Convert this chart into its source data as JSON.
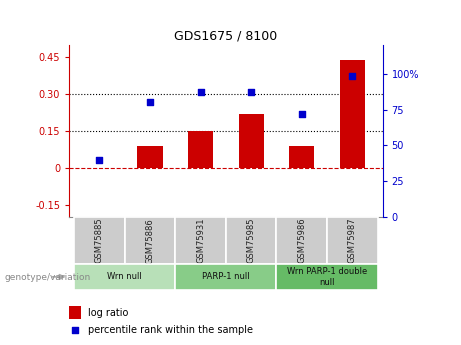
{
  "title": "GDS1675 / 8100",
  "samples": [
    "GSM75885",
    "GSM75886",
    "GSM75931",
    "GSM75985",
    "GSM75986",
    "GSM75987"
  ],
  "log_ratio": [
    0.0,
    0.09,
    0.15,
    0.22,
    0.09,
    0.44
  ],
  "percentile_rank": [
    40,
    80,
    87,
    87,
    72,
    98
  ],
  "bar_color": "#cc0000",
  "dot_color": "#0000cc",
  "groups": [
    {
      "label": "Wrn null",
      "start": 0,
      "end": 2,
      "color": "#b8e0b8"
    },
    {
      "label": "PARP-1 null",
      "start": 2,
      "end": 4,
      "color": "#88cc88"
    },
    {
      "label": "Wrn PARP-1 double\nnull",
      "start": 4,
      "end": 6,
      "color": "#66bb66"
    }
  ],
  "ylim_left": [
    -0.2,
    0.5
  ],
  "ylim_right": [
    0,
    120
  ],
  "yticks_left": [
    -0.15,
    0.0,
    0.15,
    0.3,
    0.45
  ],
  "ytick_labels_left": [
    "-0.15",
    "0",
    "0.15",
    "0.30",
    "0.45"
  ],
  "yticks_right": [
    0,
    25,
    50,
    75,
    100
  ],
  "ytick_labels_right": [
    "0",
    "25",
    "50",
    "75",
    "100%"
  ],
  "hline_vals": [
    0.15,
    0.3
  ],
  "zero_line_val": 0.0,
  "legend_items": [
    {
      "label": "log ratio",
      "color": "#cc0000"
    },
    {
      "label": "percentile rank within the sample",
      "color": "#0000cc"
    }
  ],
  "genotype_label": "genotype/variation",
  "background_color": "#ffffff",
  "plot_bg_color": "#ffffff"
}
